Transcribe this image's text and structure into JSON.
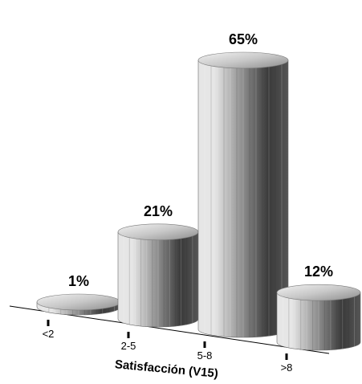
{
  "chart_data": {
    "type": "bar",
    "title": "",
    "xlabel": "Satisfacción (V15)",
    "ylabel": "",
    "categories": [
      "<2",
      "2-5",
      "5-8",
      ">8"
    ],
    "values": [
      1,
      21,
      65,
      12
    ],
    "value_labels": [
      "1%",
      "21%",
      "65%",
      "12%"
    ],
    "value_suffix": "%",
    "ylim": [
      0,
      65
    ],
    "grid": false,
    "legend": "none",
    "style": "3d-cylinder",
    "colors": {
      "dark": "#3a3a3a",
      "mid": "#9a9a9a",
      "light": "#e6e6e6",
      "axis": "#000000"
    }
  }
}
